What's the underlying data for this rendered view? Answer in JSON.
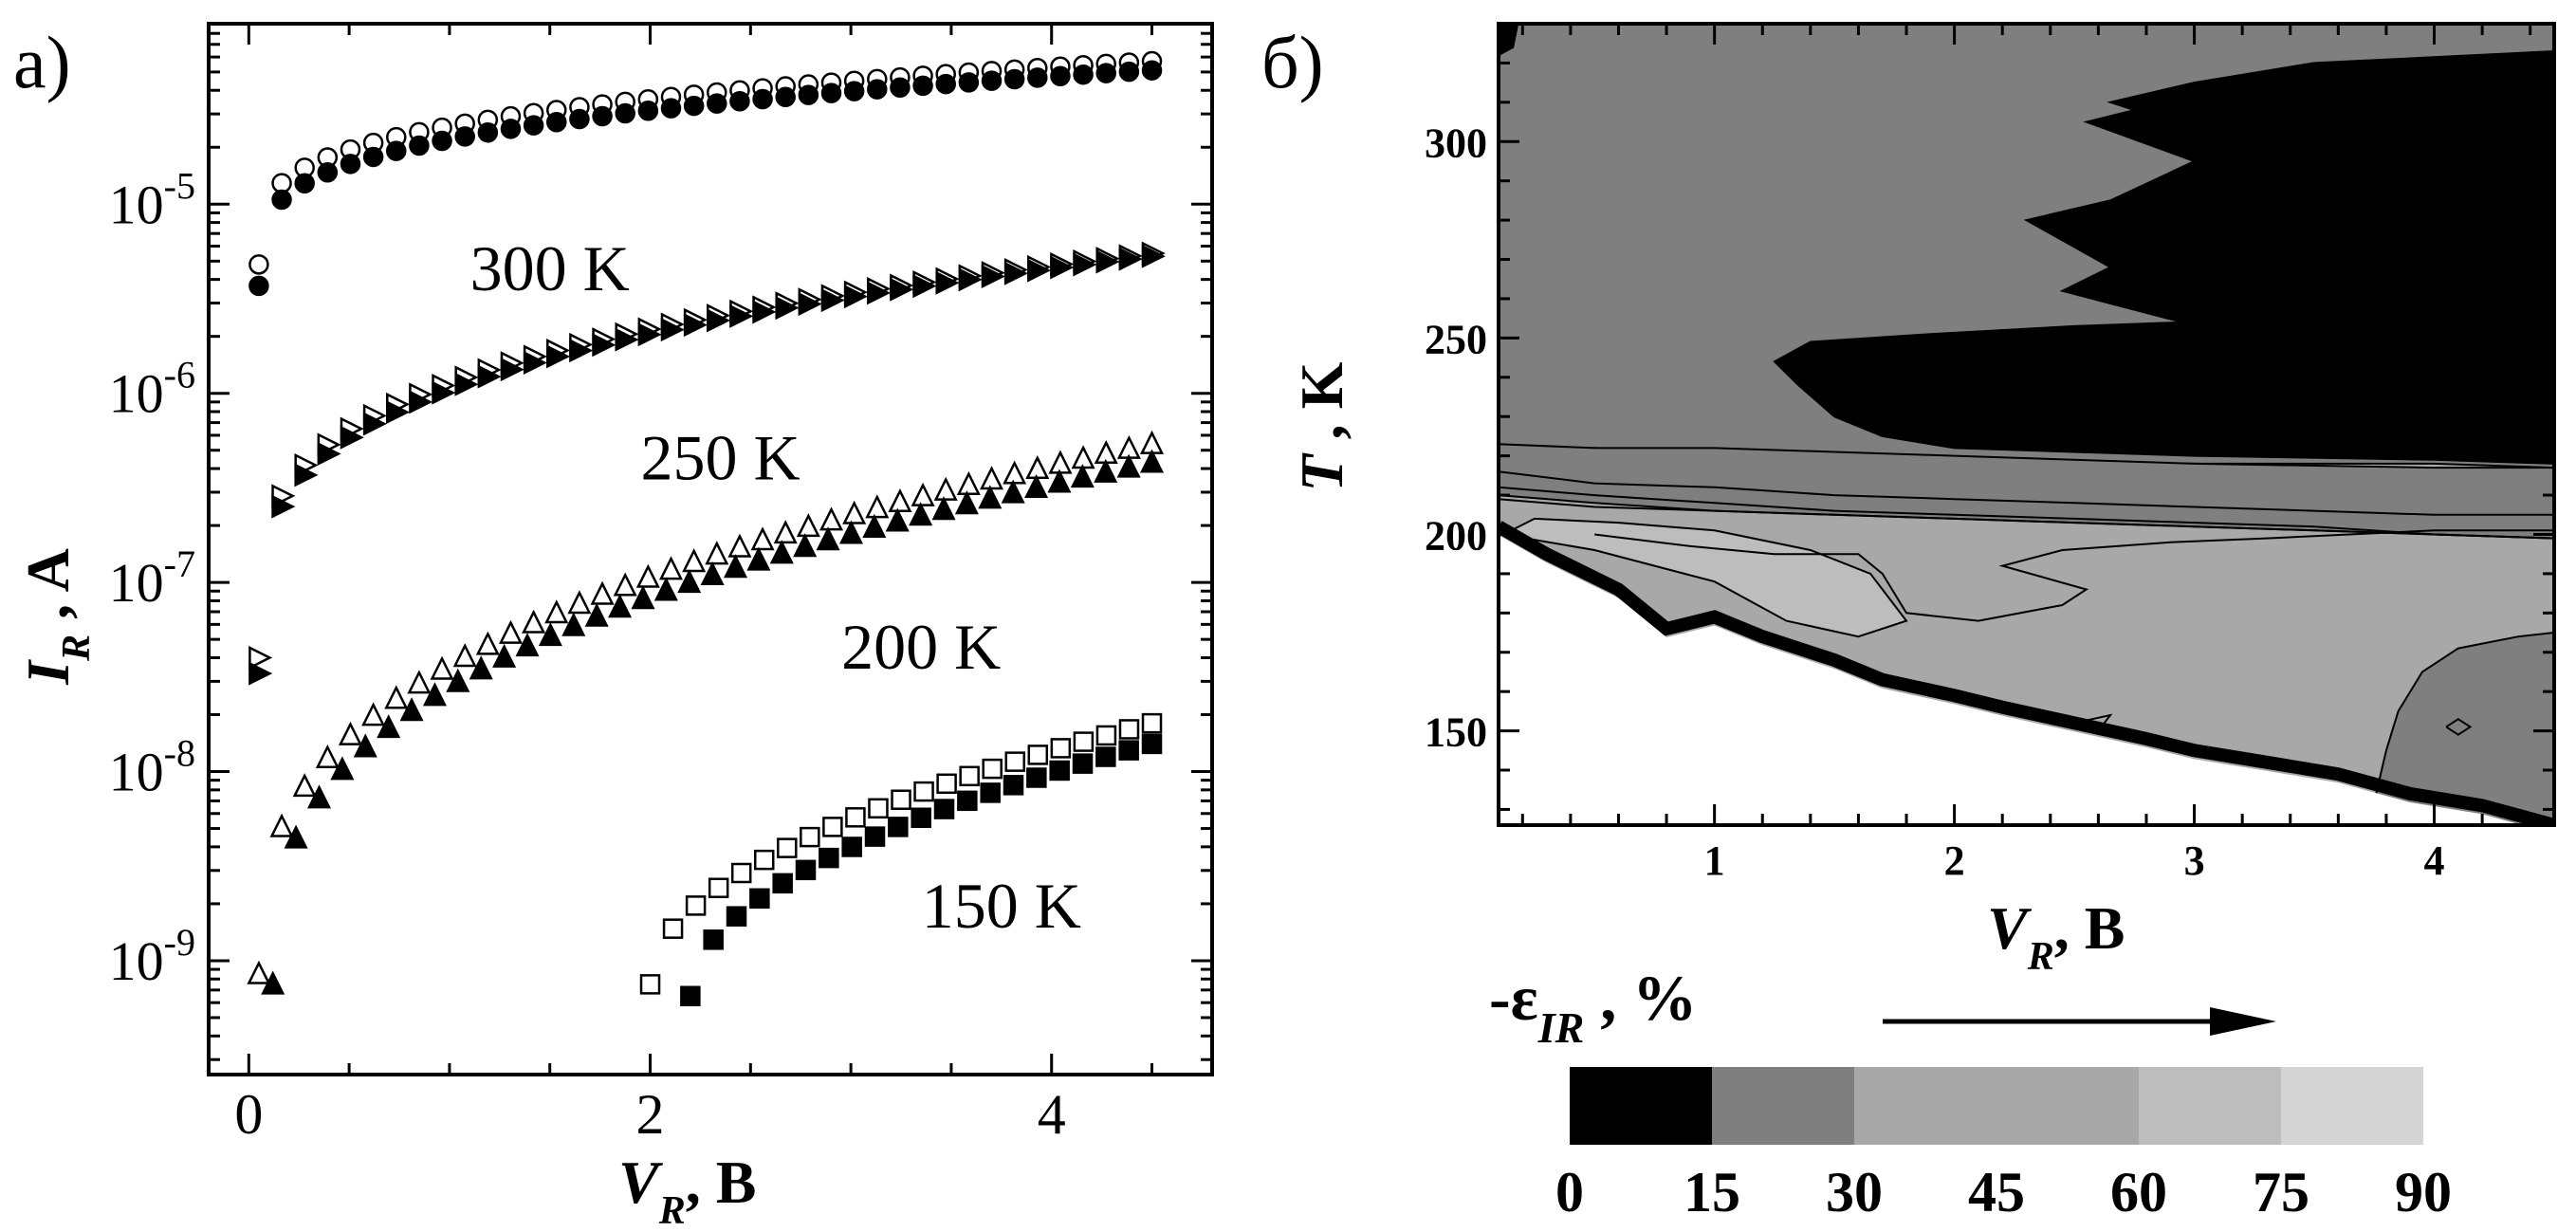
{
  "chart_data": [
    {
      "panel_label": "а)",
      "type": "scatter",
      "xlabel": {
        "symbol": "V",
        "subscript": "R",
        "unit": ",  В"
      },
      "ylabel": {
        "symbol": "I",
        "subscript": "R",
        "unit": " ,  A"
      },
      "x_scale": "linear",
      "y_scale": "log",
      "xlim": [
        -0.2,
        4.8
      ],
      "ylim": [
        2.5e-10,
        9e-05
      ],
      "x_ticks": [
        0,
        2,
        4
      ],
      "x_tick_labels": [
        "0",
        "2",
        "4"
      ],
      "y_ticks": [
        1e-09,
        1e-08,
        1e-07,
        1e-06,
        1e-05
      ],
      "y_tick_labels": [
        {
          "mant": "10",
          "exp": "-9"
        },
        {
          "mant": "10",
          "exp": "-8"
        },
        {
          "mant": "10",
          "exp": "-7"
        },
        {
          "mant": "10",
          "exp": "-6"
        },
        {
          "mant": "10",
          "exp": "-5"
        }
      ],
      "annotations": [
        {
          "text": "300 K",
          "x": 1.5,
          "y": 3.5e-06
        },
        {
          "text": "250 K",
          "x": 2.35,
          "y": 3.5e-07
        },
        {
          "text": "200 K",
          "x": 3.35,
          "y": 3.5e-08
        },
        {
          "text": "150 K",
          "x": 3.75,
          "y": 1.5e-09
        }
      ],
      "series": [
        {
          "temperature": "300 K",
          "marker": "circle",
          "filled": false,
          "x_start": 0.05,
          "x_end": 4.5,
          "n": 40,
          "y_start": 4.8e-06,
          "y_end": 5.7e-05,
          "curve": 0.25
        },
        {
          "temperature": "300 K",
          "marker": "circle",
          "filled": true,
          "x_start": 0.05,
          "x_end": 4.5,
          "n": 40,
          "y_start": 3.7e-06,
          "y_end": 5.1e-05,
          "curve": 0.25
        },
        {
          "temperature": "250 K",
          "marker": "triangle-right",
          "filled": false,
          "x_start": 0.05,
          "x_end": 4.5,
          "n": 40,
          "y_start": 4e-08,
          "y_end": 5.5e-06,
          "curve": 0.25
        },
        {
          "temperature": "250 K",
          "marker": "triangle-right",
          "filled": true,
          "x_start": 0.05,
          "x_end": 4.5,
          "n": 40,
          "y_start": 3.3e-08,
          "y_end": 5.3e-06,
          "curve": 0.25
        },
        {
          "temperature": "200 K",
          "marker": "triangle-up",
          "filled": false,
          "x_start": 0.05,
          "x_end": 4.5,
          "n": 40,
          "y_start": 8.5e-10,
          "y_end": 5.4e-07,
          "curve": 0.35
        },
        {
          "temperature": "200 K",
          "marker": "triangle-up",
          "filled": true,
          "x_start": 0.12,
          "x_end": 4.5,
          "n": 39,
          "y_start": 7.5e-10,
          "y_end": 4.3e-07,
          "curve": 0.35
        },
        {
          "temperature": "150 K",
          "marker": "square",
          "filled": false,
          "x_start": 2.0,
          "x_end": 4.5,
          "n": 23,
          "y_start": 7.5e-10,
          "y_end": 1.8e-08,
          "curve": 0.5
        },
        {
          "temperature": "150 K",
          "marker": "square",
          "filled": true,
          "x_start": 2.2,
          "x_end": 4.5,
          "n": 21,
          "y_start": 6.5e-10,
          "y_end": 1.4e-08,
          "curve": 0.5
        }
      ]
    },
    {
      "panel_label": "б)",
      "type": "contour",
      "xlabel": {
        "symbol": "V",
        "subscript": "R",
        "unit": ",  В"
      },
      "ylabel": {
        "symbol": "T",
        "unit": " ,  K"
      },
      "xlim": [
        0.1,
        4.5
      ],
      "ylim": [
        126,
        330
      ],
      "x_ticks": [
        1,
        2,
        3,
        4
      ],
      "x_tick_labels": [
        "1",
        "2",
        "3",
        "4"
      ],
      "y_ticks": [
        150,
        200,
        250,
        300
      ],
      "y_tick_labels": [
        "150",
        "200",
        "250",
        "300"
      ],
      "regions": [
        {
          "level": "0-15",
          "color": "#000000",
          "points": [
            [
              1.25,
              244
            ],
            [
              1.4,
              249
            ],
            [
              1.9,
              251
            ],
            [
              2.5,
              253
            ],
            [
              2.95,
              254
            ],
            [
              2.45,
              262
            ],
            [
              2.65,
              268
            ],
            [
              2.3,
              280
            ],
            [
              2.65,
              285
            ],
            [
              3.0,
              295
            ],
            [
              2.55,
              305
            ],
            [
              2.75,
              308
            ],
            [
              2.65,
              310
            ],
            [
              3.0,
              315
            ],
            [
              3.5,
              320
            ],
            [
              4.5,
              323
            ],
            [
              4.5,
              218
            ],
            [
              4.0,
              219
            ],
            [
              3.0,
              220
            ],
            [
              2.0,
              222
            ],
            [
              1.7,
              225
            ],
            [
              1.5,
              230
            ],
            [
              1.35,
              238
            ]
          ]
        },
        {
          "level": "0-15",
          "color": "#000000",
          "points": [
            [
              0.1,
              330
            ],
            [
              0.18,
              330
            ],
            [
              0.16,
              324
            ],
            [
              0.1,
              322
            ]
          ]
        },
        {
          "level": "15-30",
          "color": "#7f7f7f",
          "points": [
            [
              3.85,
              155
            ],
            [
              3.95,
              165
            ],
            [
              4.1,
              171
            ],
            [
              4.35,
              174
            ],
            [
              4.5,
              175
            ],
            [
              4.5,
              126
            ],
            [
              4.2,
              126
            ],
            [
              3.95,
              127
            ],
            [
              3.75,
              132
            ],
            [
              3.8,
              145
            ]
          ]
        },
        {
          "level": "15-30",
          "color": "#7f7f7f",
          "points": [
            [
              0.1,
              210
            ],
            [
              0.5,
              208
            ],
            [
              1.0,
              206
            ],
            [
              1.5,
              205
            ],
            [
              2.0,
              204
            ],
            [
              2.5,
              203
            ],
            [
              3.0,
              202
            ],
            [
              3.5,
              201
            ],
            [
              4.0,
              200
            ],
            [
              4.5,
              199
            ],
            [
              4.5,
              217
            ],
            [
              4.0,
              217
            ],
            [
              3.0,
              218
            ],
            [
              2.0,
              220
            ],
            [
              1.5,
              221
            ],
            [
              1.0,
              222
            ],
            [
              0.5,
              222
            ],
            [
              0.1,
              223
            ]
          ]
        },
        {
          "level": "45-60",
          "color": "#bdbdbd",
          "points": [
            [
              0.12,
              200
            ],
            [
              0.5,
              196
            ],
            [
              1.0,
              188
            ],
            [
              1.3,
              178
            ],
            [
              1.6,
              174
            ],
            [
              1.8,
              178
            ],
            [
              1.65,
              190
            ],
            [
              1.4,
              196
            ],
            [
              1.0,
              201
            ],
            [
              0.6,
              203
            ],
            [
              0.25,
              204
            ]
          ]
        }
      ],
      "contour_lines": [
        {
          "level": 45,
          "points": [
            [
              0.1,
              216
            ],
            [
              0.5,
              213
            ],
            [
              1.0,
              212
            ],
            [
              1.5,
              210
            ],
            [
              2.0,
              209
            ],
            [
              2.5,
              208
            ],
            [
              3.0,
              207
            ],
            [
              3.5,
              206
            ],
            [
              4.0,
              205
            ],
            [
              4.5,
              205
            ]
          ]
        },
        {
          "level": 40,
          "points": [
            [
              0.1,
              212
            ],
            [
              0.5,
              210
            ],
            [
              1.0,
              208
            ],
            [
              1.5,
              206
            ],
            [
              2.0,
              205
            ],
            [
              2.5,
              204
            ],
            [
              3.0,
              203
            ],
            [
              3.5,
              202
            ],
            [
              4.0,
              200
            ],
            [
              4.5,
              199
            ]
          ]
        },
        {
          "level": 35,
          "points": [
            [
              0.1,
              209
            ],
            [
              0.5,
              207
            ],
            [
              1.0,
              206
            ],
            [
              1.5,
              205
            ],
            [
              2.0,
              204
            ],
            [
              2.5,
              203
            ],
            [
              3.0,
              202
            ],
            [
              3.5,
              201
            ],
            [
              4.0,
              200
            ],
            [
              4.5,
              199
            ]
          ]
        },
        {
          "level": 55,
          "points": [
            [
              0.5,
              200
            ],
            [
              0.9,
              197
            ],
            [
              1.25,
              195
            ],
            [
              1.6,
              195
            ],
            [
              1.7,
              190
            ],
            [
              1.8,
              180
            ],
            [
              2.1,
              178
            ],
            [
              2.45,
              182
            ],
            [
              2.55,
              186
            ],
            [
              2.2,
              192
            ],
            [
              2.45,
              196
            ],
            [
              2.9,
              198
            ],
            [
              3.3,
              199
            ],
            [
              4.0,
              201
            ],
            [
              4.5,
              201
            ]
          ]
        },
        {
          "level": 65,
          "points": [
            [
              2.5,
              152
            ],
            [
              2.65,
              154
            ],
            [
              2.6,
              150
            ]
          ]
        },
        {
          "level": 25,
          "points": [
            [
              4.05,
              151
            ],
            [
              4.1,
              149
            ],
            [
              4.15,
              151
            ],
            [
              4.1,
              153
            ],
            [
              4.05,
              151
            ]
          ]
        }
      ],
      "white_boundary": [
        [
          0.1,
          202
        ],
        [
          0.3,
          195
        ],
        [
          0.6,
          186
        ],
        [
          0.8,
          176
        ],
        [
          1.0,
          179
        ],
        [
          1.2,
          174
        ],
        [
          1.5,
          168
        ],
        [
          1.7,
          163
        ],
        [
          2.0,
          159
        ],
        [
          2.2,
          156
        ],
        [
          2.5,
          152
        ],
        [
          2.8,
          148
        ],
        [
          3.0,
          145
        ],
        [
          3.3,
          142
        ],
        [
          3.6,
          139
        ],
        [
          3.9,
          134
        ],
        [
          4.2,
          131
        ],
        [
          4.5,
          126
        ]
      ],
      "black_edge_width": 14,
      "colorbar": {
        "title": {
          "prefix": "-ε",
          "subscript": "IR",
          "suffix": " ,  %"
        },
        "levels": [
          0,
          15,
          30,
          45,
          60,
          75,
          90
        ],
        "level_labels": [
          "0",
          "15",
          "30",
          "45",
          "60",
          "75",
          "90"
        ],
        "colors": [
          "#000000",
          "#7f7f7f",
          "#a8a8a8",
          "#a8a8a8",
          "#bdbdbd",
          "#d4d4d4"
        ],
        "arrow": "right"
      }
    }
  ]
}
